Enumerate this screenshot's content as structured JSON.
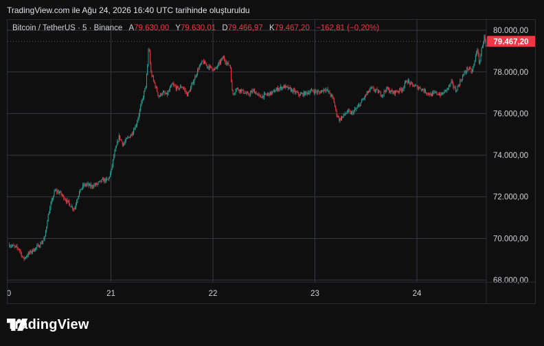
{
  "caption": "TradingView.com ile Ağu 24, 2026 16:40 UTC tarihinde oluşturuldu",
  "legend": {
    "symbol": "Bitcoin / TetherUS · 5 · Binance",
    "open_label": "A",
    "open": "79.630,00",
    "high_label": "Y",
    "high": "79.630,01",
    "low_label": "D",
    "low": "79.466,97",
    "close_label": "K",
    "close": "79.467,20",
    "change": "−162,81 (−0,20%)"
  },
  "price_badge": "79.467,20",
  "brand": "TradingView",
  "colors": {
    "up": "#26a69a",
    "down": "#f23645",
    "grid": "#363a45",
    "text": "#d1d4dc",
    "badge": "#f23645"
  },
  "chart_data": {
    "type": "candlestick",
    "title": "Bitcoin / TetherUS · 5 · Binance",
    "x_ticks": [
      "0",
      "21",
      "22",
      "23",
      "24"
    ],
    "y_ticks": [
      "80.000,00",
      "78.000,00",
      "76.000,00",
      "74.000,00",
      "72.000,00",
      "70.000,00",
      "68.000,00"
    ],
    "y_tick_values": [
      80000,
      78000,
      76000,
      74000,
      72000,
      70000,
      68000
    ],
    "ylim": [
      67900,
      80500
    ],
    "day_range": [
      0,
      4.74
    ],
    "last_price": 79467.2,
    "price_path": [
      [
        0.0,
        69700
      ],
      [
        0.1,
        69500
      ],
      [
        0.14,
        69000
      ],
      [
        0.2,
        69300
      ],
      [
        0.28,
        69600
      ],
      [
        0.32,
        69800
      ],
      [
        0.35,
        70000
      ],
      [
        0.38,
        71000
      ],
      [
        0.42,
        71800
      ],
      [
        0.45,
        72300
      ],
      [
        0.5,
        72200
      ],
      [
        0.55,
        71900
      ],
      [
        0.6,
        71600
      ],
      [
        0.64,
        71400
      ],
      [
        0.68,
        72100
      ],
      [
        0.72,
        72500
      ],
      [
        0.76,
        72600
      ],
      [
        0.8,
        72500
      ],
      [
        0.86,
        72600
      ],
      [
        0.92,
        72800
      ],
      [
        0.97,
        72800
      ],
      [
        1.0,
        73200
      ],
      [
        1.03,
        74000
      ],
      [
        1.08,
        74900
      ],
      [
        1.12,
        74500
      ],
      [
        1.16,
        74800
      ],
      [
        1.2,
        75000
      ],
      [
        1.25,
        75500
      ],
      [
        1.3,
        76500
      ],
      [
        1.34,
        77300
      ],
      [
        1.36,
        78300
      ],
      [
        1.37,
        79400
      ],
      [
        1.39,
        78000
      ],
      [
        1.43,
        77400
      ],
      [
        1.47,
        76800
      ],
      [
        1.5,
        77000
      ],
      [
        1.55,
        76900
      ],
      [
        1.6,
        77400
      ],
      [
        1.65,
        77200
      ],
      [
        1.7,
        77300
      ],
      [
        1.75,
        76900
      ],
      [
        1.78,
        77200
      ],
      [
        1.82,
        77700
      ],
      [
        1.86,
        78200
      ],
      [
        1.9,
        78500
      ],
      [
        1.94,
        78300
      ],
      [
        1.98,
        78200
      ],
      [
        2.02,
        78100
      ],
      [
        2.06,
        78400
      ],
      [
        2.1,
        78700
      ],
      [
        2.14,
        78400
      ],
      [
        2.17,
        78300
      ],
      [
        2.19,
        76900
      ],
      [
        2.23,
        77200
      ],
      [
        2.28,
        77100
      ],
      [
        2.34,
        76900
      ],
      [
        2.4,
        77100
      ],
      [
        2.46,
        76800
      ],
      [
        2.52,
        76900
      ],
      [
        2.58,
        77000
      ],
      [
        2.64,
        77200
      ],
      [
        2.7,
        77300
      ],
      [
        2.78,
        77100
      ],
      [
        2.85,
        76900
      ],
      [
        2.92,
        77000
      ],
      [
        2.98,
        77100
      ],
      [
        3.04,
        77000
      ],
      [
        3.1,
        77200
      ],
      [
        3.14,
        77000
      ],
      [
        3.18,
        76700
      ],
      [
        3.21,
        76000
      ],
      [
        3.24,
        75700
      ],
      [
        3.28,
        75900
      ],
      [
        3.32,
        76100
      ],
      [
        3.36,
        76000
      ],
      [
        3.42,
        76300
      ],
      [
        3.46,
        76600
      ],
      [
        3.5,
        76900
      ],
      [
        3.55,
        77200
      ],
      [
        3.6,
        77100
      ],
      [
        3.66,
        76900
      ],
      [
        3.7,
        77200
      ],
      [
        3.76,
        77000
      ],
      [
        3.82,
        77100
      ],
      [
        3.86,
        77200
      ],
      [
        3.9,
        77600
      ],
      [
        3.94,
        77400
      ],
      [
        3.99,
        77300
      ],
      [
        4.04,
        77200
      ],
      [
        4.1,
        77000
      ],
      [
        4.14,
        76900
      ],
      [
        4.18,
        77000
      ],
      [
        4.24,
        76900
      ],
      [
        4.3,
        77200
      ],
      [
        4.34,
        77500
      ],
      [
        4.38,
        77100
      ],
      [
        4.42,
        77500
      ],
      [
        4.46,
        77900
      ],
      [
        4.5,
        78200
      ],
      [
        4.54,
        78000
      ],
      [
        4.57,
        78600
      ],
      [
        4.59,
        79200
      ],
      [
        4.61,
        78300
      ],
      [
        4.63,
        79000
      ],
      [
        4.66,
        79700
      ],
      [
        4.68,
        79100
      ],
      [
        4.7,
        79400
      ],
      [
        4.72,
        79300
      ],
      [
        4.74,
        79467
      ]
    ]
  }
}
